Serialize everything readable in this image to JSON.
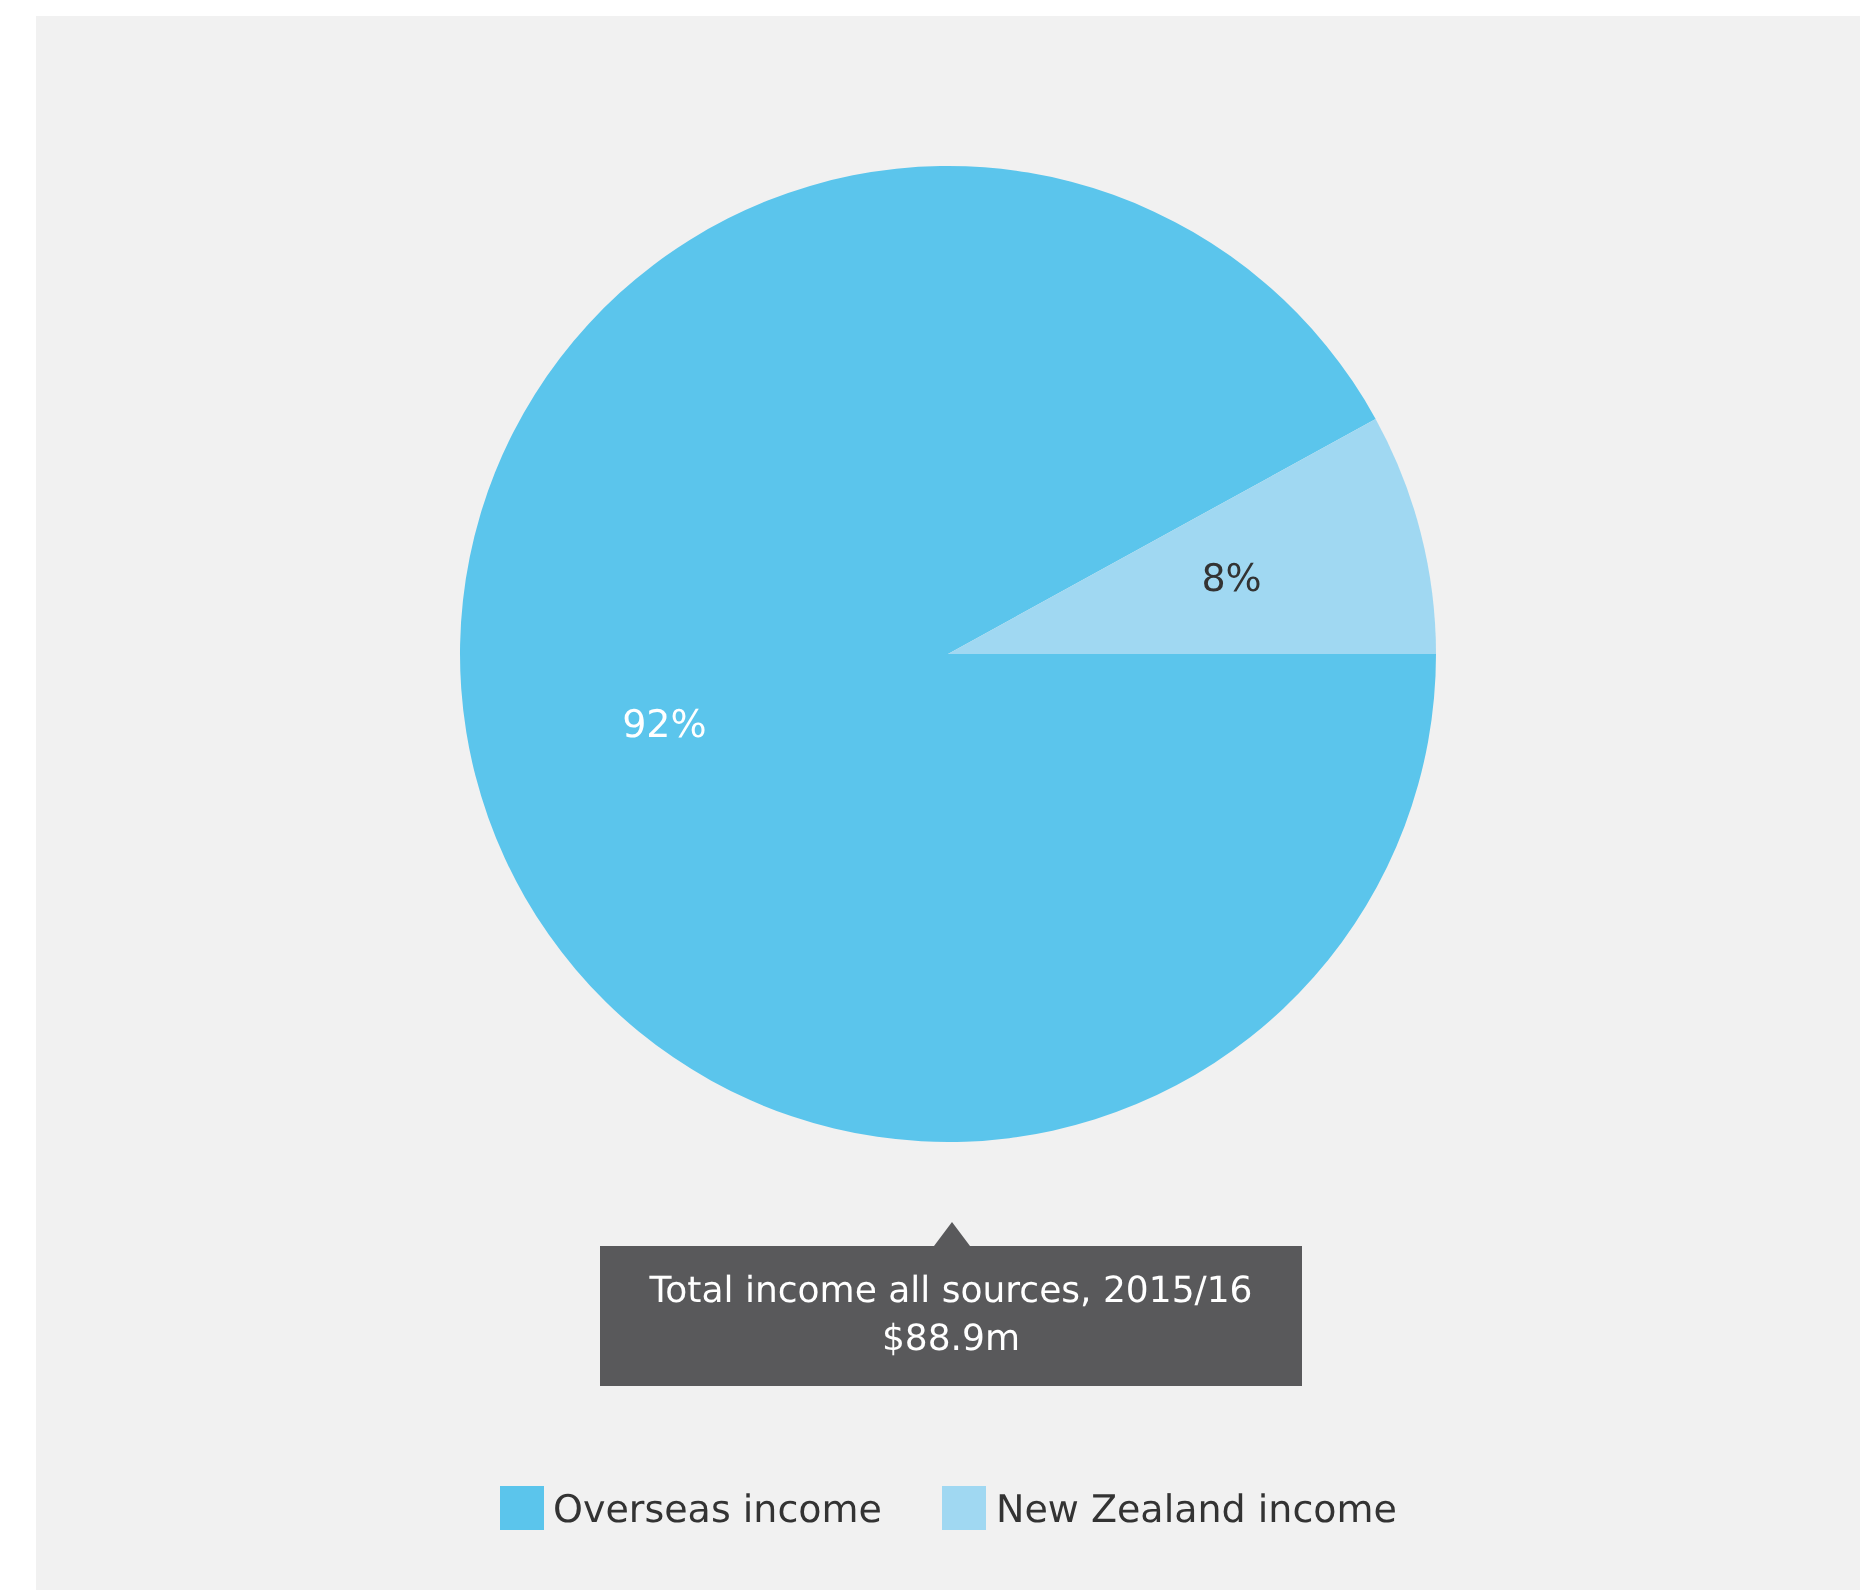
{
  "chart_data": {
    "type": "pie",
    "categories": [
      "Overseas income",
      "New Zealand income"
    ],
    "values": [
      92,
      8
    ],
    "colors": [
      "#5bc5ec",
      "#a0d8f2"
    ],
    "value_labels": [
      "92%",
      "8%"
    ],
    "annotations": [
      "Total income all sources, 2015/16",
      "$88.9m"
    ],
    "legend": "bottom"
  }
}
